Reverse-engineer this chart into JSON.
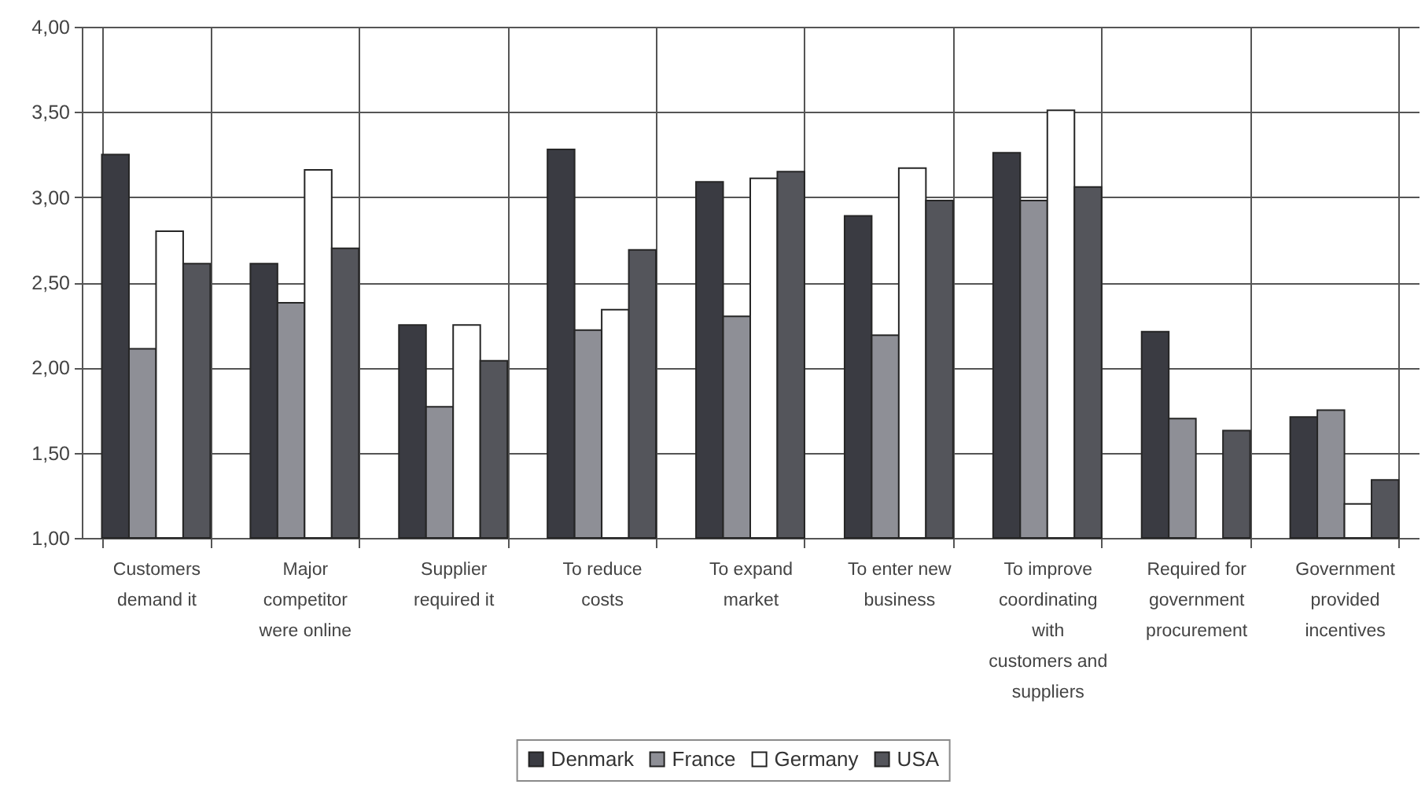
{
  "chart_data": {
    "type": "bar",
    "categories": [
      "Customers demand it",
      "Major competitor were online",
      "Supplier required it",
      "To reduce costs",
      "To expand market",
      "To enter new business",
      "To improve coordinating with customers and suppliers",
      "Required for government procurement",
      "Government provided incentives"
    ],
    "series": [
      {
        "name": "Denmark",
        "color": "#3a3b42",
        "values": [
          3.25,
          2.61,
          2.25,
          3.28,
          3.09,
          2.89,
          3.26,
          2.21,
          1.71
        ]
      },
      {
        "name": "France",
        "color": "#8e8f96",
        "values": [
          2.11,
          2.38,
          1.77,
          2.22,
          2.3,
          2.19,
          2.98,
          1.7,
          1.75
        ]
      },
      {
        "name": "Germany",
        "color": "#ffffff",
        "values": [
          2.8,
          3.16,
          2.25,
          2.34,
          3.11,
          3.17,
          3.51,
          null,
          1.2
        ]
      },
      {
        "name": "USA",
        "color": "#54555b",
        "values": [
          2.61,
          2.7,
          2.04,
          2.69,
          3.15,
          2.98,
          3.06,
          1.63,
          1.34
        ]
      }
    ],
    "ylim": [
      1,
      4
    ],
    "yticks": [
      {
        "value": 1,
        "label": "1,00"
      },
      {
        "value": 1.5,
        "label": "1,50"
      },
      {
        "value": 2,
        "label": "2,00"
      },
      {
        "value": 2.5,
        "label": "2,50"
      },
      {
        "value": 3,
        "label": "3,00"
      },
      {
        "value": 3.5,
        "label": "3,50"
      },
      {
        "value": 4,
        "label": "4,00"
      }
    ],
    "grid": true,
    "legend": "bottom"
  }
}
